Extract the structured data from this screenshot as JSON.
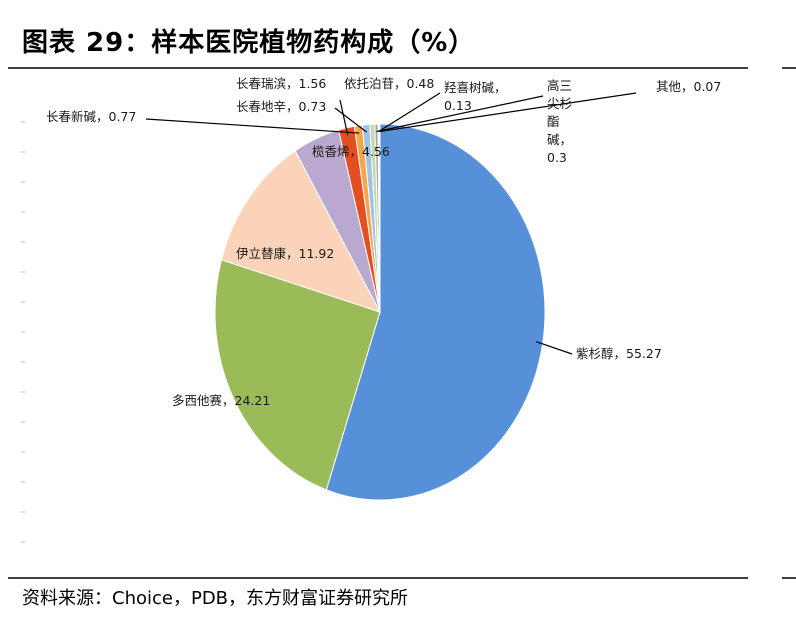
{
  "title": "图表 29：样本医院植物药构成（%）",
  "source": "资料来源：Choice，PDB，东方财富证券研究所",
  "chart_data": {
    "type": "pie",
    "title": "图表 29：样本医院植物药构成（%）",
    "unit": "%",
    "start_angle_deg": 0,
    "direction": "clockwise",
    "slices": [
      {
        "label": "紫杉醇",
        "value": 55.27,
        "color": "#5590d8",
        "text": "紫杉醇，55.27"
      },
      {
        "label": "多西他赛",
        "value": 24.21,
        "color": "#9bbb59",
        "text": "多西他赛，24.21"
      },
      {
        "label": "伊立替康",
        "value": 11.92,
        "color": "#fad3b8",
        "text": "伊立替康，11.92"
      },
      {
        "label": "榄香烯",
        "value": 4.56,
        "color": "#bba8d0",
        "text": "榄香烯，4.56"
      },
      {
        "label": "长春瑞滨",
        "value": 1.56,
        "color": "#e34f22",
        "text": "长春瑞滨，1.56"
      },
      {
        "label": "长春新碱",
        "value": 0.77,
        "color": "#f6a54a",
        "text": "长春新碱，0.77"
      },
      {
        "label": "长春地辛",
        "value": 0.73,
        "color": "#9dc3e6",
        "text": "长春地辛，0.73"
      },
      {
        "label": "依托泊苷",
        "value": 0.48,
        "color": "#c6d9a8",
        "text": "依托泊苷，0.48"
      },
      {
        "label": "三尖杉酯碱",
        "value": 0.3,
        "color": "#a5a5a5",
        "text": "高三尖杉酯碱，0.3",
        "lines": [
          "高三",
          "尖杉",
          "酯",
          "碱，",
          "0.3"
        ]
      },
      {
        "label": "羟喜树碱",
        "value": 0.13,
        "color": "#f2b8a0",
        "text": "羟喜树碱，0.13",
        "lines": [
          "羟喜树碱，",
          "0.13"
        ]
      },
      {
        "label": "其他",
        "value": 0.07,
        "color": "#d9c6e8",
        "text": "其他，0.07"
      }
    ]
  }
}
